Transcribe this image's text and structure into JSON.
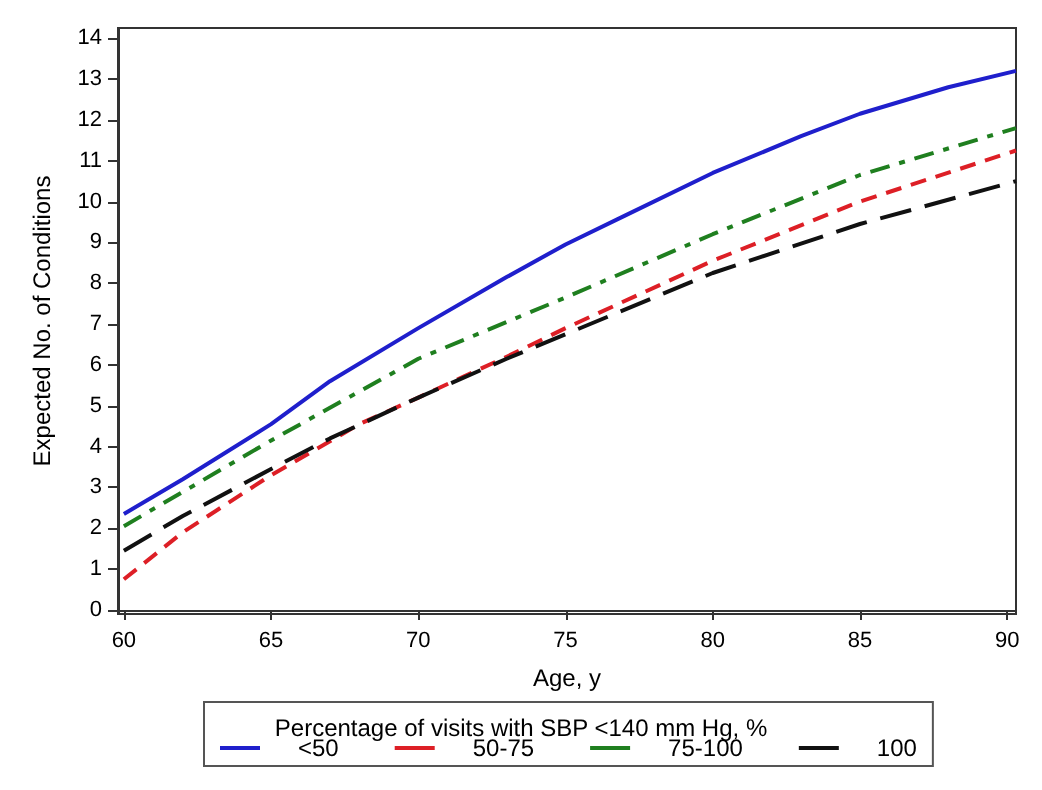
{
  "chart_data": {
    "type": "line",
    "xlabel": "Age, y",
    "ylabel": "Expected No. of Conditions",
    "legend_title": "Percentage of visits with SBP <140 mm Hg, %",
    "xlim": [
      59.8,
      90.3
    ],
    "xticks": [
      60,
      65,
      70,
      75,
      80,
      85,
      90
    ],
    "ylim": [
      -0.1,
      14.25
    ],
    "yticks": [
      0,
      1,
      2,
      3,
      4,
      5,
      6,
      7,
      8,
      9,
      10,
      11,
      12,
      13,
      14
    ],
    "grid": false,
    "legend": "bottom",
    "marker": "none",
    "series": [
      {
        "name": "<50",
        "color": "#1f1fcc",
        "line_style": "solid",
        "x": [
          60,
          62,
          65,
          67,
          70,
          73,
          75,
          77,
          80,
          83,
          85,
          88,
          90.3
        ],
        "values": [
          2.35,
          3.2,
          4.55,
          5.6,
          6.9,
          8.15,
          8.95,
          9.65,
          10.7,
          11.6,
          12.15,
          12.8,
          13.2
        ]
      },
      {
        "name": "50-75",
        "color": "#dd1f26",
        "line_style": "dashed",
        "x": [
          60,
          62,
          65,
          68,
          70,
          73,
          75,
          80,
          85,
          90.3
        ],
        "values": [
          0.75,
          1.9,
          3.3,
          4.55,
          5.2,
          6.2,
          6.9,
          8.55,
          10.0,
          11.25
        ]
      },
      {
        "name": "75-100",
        "color": "#1f7f1f",
        "line_style": "dashed",
        "x": [
          60,
          65,
          70,
          75,
          80,
          85,
          90.3
        ],
        "values": [
          2.05,
          4.15,
          6.15,
          7.65,
          9.2,
          10.65,
          11.8
        ]
      },
      {
        "name": "100",
        "color": "#111111",
        "line_style": "dashed",
        "x": [
          60,
          62,
          65,
          67,
          70,
          73,
          75,
          80,
          85,
          90.3
        ],
        "values": [
          1.45,
          2.3,
          3.45,
          4.2,
          5.2,
          6.15,
          6.75,
          8.25,
          9.45,
          10.5
        ]
      }
    ]
  }
}
